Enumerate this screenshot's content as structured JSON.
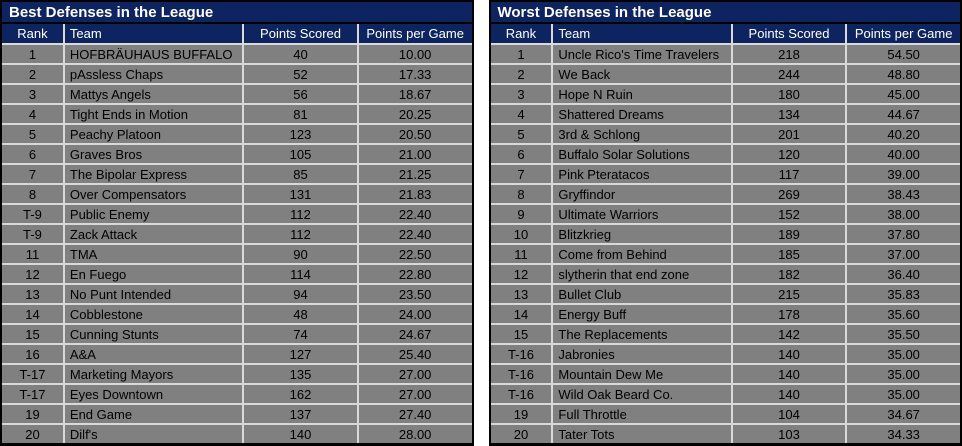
{
  "colors": {
    "header_navy": "#0d2460",
    "row_gray": "#808080",
    "grid_line": "#d9d9d9",
    "table_border": "#000000",
    "header_text": "#ffffff",
    "cell_text": "#000000",
    "gap_background": "#ffffff"
  },
  "columns": [
    "Rank",
    "Team",
    "Points Scored",
    "Points per Game"
  ],
  "tables": [
    {
      "title": "Best Defenses in the League",
      "rows": [
        [
          "1",
          "HOFBRÄUHAUS BUFFALO",
          "40",
          "10.00"
        ],
        [
          "2",
          "pAssless Chaps",
          "52",
          "17.33"
        ],
        [
          "3",
          "Mattys Angels",
          "56",
          "18.67"
        ],
        [
          "4",
          "Tight Ends in Motion",
          "81",
          "20.25"
        ],
        [
          "5",
          "Peachy Platoon",
          "123",
          "20.50"
        ],
        [
          "6",
          "Graves Bros",
          "105",
          "21.00"
        ],
        [
          "7",
          "The Bipolar Express",
          "85",
          "21.25"
        ],
        [
          "8",
          "Over Compensators",
          "131",
          "21.83"
        ],
        [
          "T-9",
          "Public Enemy",
          "112",
          "22.40"
        ],
        [
          "T-9",
          "Zack Attack",
          "112",
          "22.40"
        ],
        [
          "11",
          "TMA",
          "90",
          "22.50"
        ],
        [
          "12",
          "En Fuego",
          "114",
          "22.80"
        ],
        [
          "13",
          "No Punt Intended",
          "94",
          "23.50"
        ],
        [
          "14",
          "Cobblestone",
          "48",
          "24.00"
        ],
        [
          "15",
          "Cunning Stunts",
          "74",
          "24.67"
        ],
        [
          "16",
          "A&A",
          "127",
          "25.40"
        ],
        [
          "T-17",
          "Marketing Mayors",
          "135",
          "27.00"
        ],
        [
          "T-17",
          "Eyes Downtown",
          "162",
          "27.00"
        ],
        [
          "19",
          "End Game",
          "137",
          "27.40"
        ],
        [
          "20",
          "Dilf's",
          "140",
          "28.00"
        ]
      ]
    },
    {
      "title": "Worst Defenses in the League",
      "rows": [
        [
          "1",
          "Uncle Rico's Time Travelers",
          "218",
          "54.50"
        ],
        [
          "2",
          "We Back",
          "244",
          "48.80"
        ],
        [
          "3",
          "Hope N Ruin",
          "180",
          "45.00"
        ],
        [
          "4",
          "Shattered Dreams",
          "134",
          "44.67"
        ],
        [
          "5",
          "3rd & Schlong",
          "201",
          "40.20"
        ],
        [
          "6",
          "Buffalo Solar Solutions",
          "120",
          "40.00"
        ],
        [
          "7",
          "Pink Pteratacos",
          "117",
          "39.00"
        ],
        [
          "8",
          "Gryffindor",
          "269",
          "38.43"
        ],
        [
          "9",
          "Ultimate Warriors",
          "152",
          "38.00"
        ],
        [
          "10",
          "Blitzkrieg",
          "189",
          "37.80"
        ],
        [
          "11",
          "Come from Behind",
          "185",
          "37.00"
        ],
        [
          "12",
          "slytherin that end zone",
          "182",
          "36.40"
        ],
        [
          "13",
          "Bullet Club",
          "215",
          "35.83"
        ],
        [
          "14",
          "Energy Buff",
          "178",
          "35.60"
        ],
        [
          "15",
          "The Replacements",
          "142",
          "35.50"
        ],
        [
          "T-16",
          "Jabronies",
          "140",
          "35.00"
        ],
        [
          "T-16",
          "Mountain Dew Me",
          "140",
          "35.00"
        ],
        [
          "T-16",
          "Wild Oak Beard Co.",
          "140",
          "35.00"
        ],
        [
          "19",
          "Full Throttle",
          "104",
          "34.67"
        ],
        [
          "20",
          "Tater Tots",
          "103",
          "34.33"
        ]
      ]
    }
  ]
}
